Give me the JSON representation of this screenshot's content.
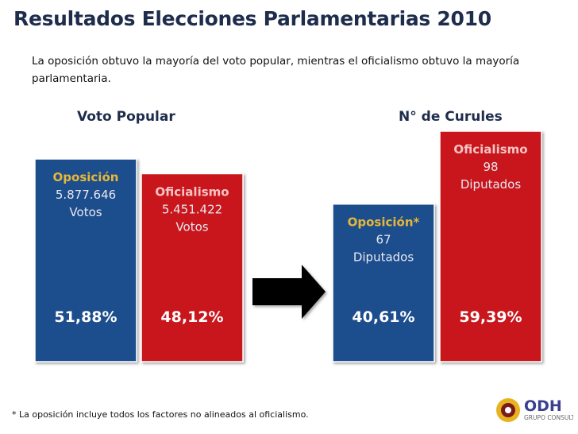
{
  "title": "Resultados Elecciones Parlamentarias 2010",
  "subtitle": "La oposición obtuvo la mayoría del voto popular, mientras el oficialismo obtuvo la mayoría parlamentaria.",
  "footnote": "* La oposición incluye todos los factores no alineados al oficialismo.",
  "colors": {
    "oposicion": "#1f4e8c",
    "oficialismo": "#c8161c",
    "arrow": "#000000"
  },
  "chart_data": [
    {
      "type": "bar",
      "title": "Voto Popular",
      "categories": [
        "Oposición",
        "Oficialismo"
      ],
      "values": [
        5877646,
        5451422
      ],
      "value_labels": [
        "5.877.646",
        "5.451.422"
      ],
      "unit_label": "Votos",
      "percent_labels": [
        "51,88%",
        "48,12%"
      ],
      "percents": [
        51.88,
        48.12
      ]
    },
    {
      "type": "bar",
      "title": "N° de Curules",
      "categories": [
        "Oposición*",
        "Oficialismo"
      ],
      "values": [
        67,
        98
      ],
      "value_labels": [
        "67",
        "98"
      ],
      "unit_label": "Diputados",
      "percent_labels": [
        "40,61%",
        "59,39%"
      ],
      "percents": [
        40.61,
        59.39
      ]
    }
  ],
  "logo": {
    "text": "ODH",
    "subtext": "GRUPO CONSULTOR"
  }
}
